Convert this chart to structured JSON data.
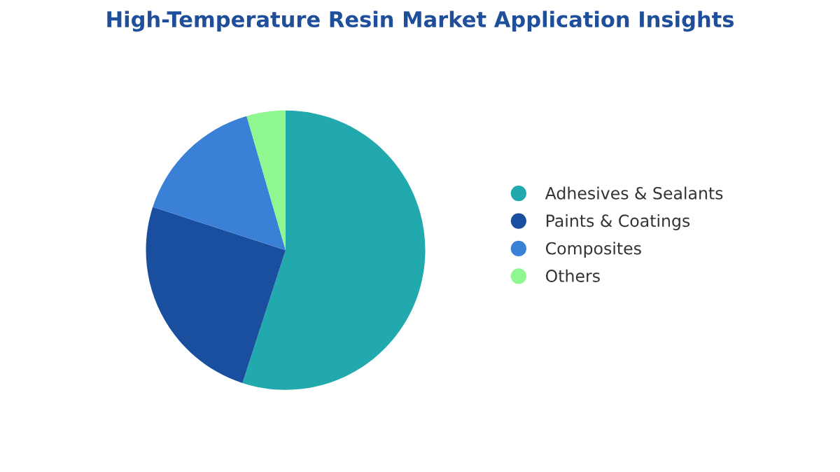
{
  "chart_data": {
    "type": "pie",
    "title": "High-Temperature Resin Market Application Insights",
    "categories": [
      "Adhesives & Sealants",
      "Paints & Coatings",
      "Composites",
      "Others"
    ],
    "values": [
      55,
      25,
      15.5,
      4.5
    ],
    "colors": [
      "#21a9ad",
      "#1a4e9e",
      "#3a80d6",
      "#8ef78f"
    ],
    "legend": "right"
  }
}
